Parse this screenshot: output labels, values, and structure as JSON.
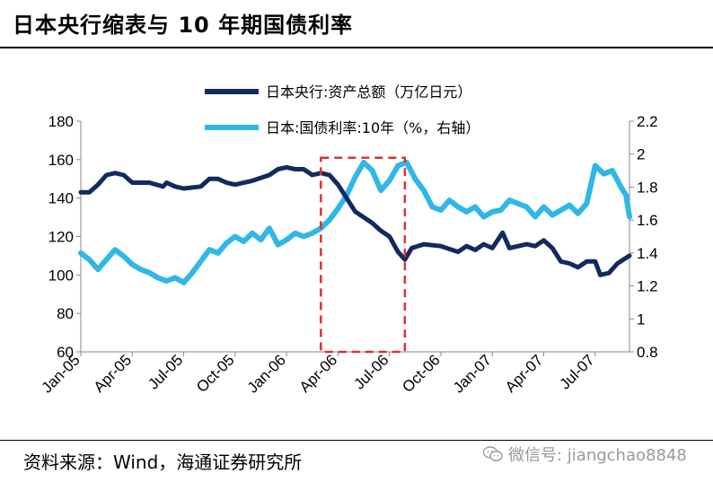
{
  "title": "日本央行缩表与 10 年期国债利率",
  "source": "资料来源：Wind，海通证券研究所",
  "watermark": {
    "icon": "wechat-icon",
    "text": "微信号: jiangchao8848"
  },
  "chart_data": {
    "type": "line",
    "colors": {
      "balance": "#132a5e",
      "yield": "#2fb7e6",
      "highlight": "#e03030"
    },
    "x_tick_labels": [
      "Jan-05",
      "Apr-05",
      "Jul-05",
      "Oct-05",
      "Jan-06",
      "Apr-06",
      "Jul-06",
      "Oct-06",
      "Jan-07",
      "Apr-07",
      "Jul-07"
    ],
    "x_range": [
      0,
      32
    ],
    "y_left": {
      "ticks": [
        60,
        80,
        100,
        120,
        140,
        160,
        180
      ],
      "range": [
        60,
        180
      ]
    },
    "y_right": {
      "ticks": [
        "0.8",
        "1",
        "1.2",
        "1.4",
        "1.6",
        "1.8",
        "2",
        "2.2"
      ],
      "range": [
        0.8,
        2.2
      ]
    },
    "highlight_box": {
      "x_range": [
        14,
        18.9
      ],
      "y_range": [
        60,
        161
      ]
    },
    "legend": [
      {
        "name": "日本央行:资产总额（万亿日元）",
        "axis": "left"
      },
      {
        "name": "日本:国债利率:10年（%，右轴）",
        "axis": "right"
      }
    ],
    "series": [
      {
        "name": "日本央行:资产总额（万亿日元）",
        "axis": "left",
        "points": [
          [
            0,
            143
          ],
          [
            0.5,
            143
          ],
          [
            1,
            147
          ],
          [
            1.5,
            152
          ],
          [
            2,
            153
          ],
          [
            2.5,
            152
          ],
          [
            3,
            148
          ],
          [
            4,
            148
          ],
          [
            4.8,
            146
          ],
          [
            5,
            148
          ],
          [
            5.5,
            146
          ],
          [
            6,
            145
          ],
          [
            7,
            146
          ],
          [
            7.5,
            150
          ],
          [
            8,
            150
          ],
          [
            8.5,
            148
          ],
          [
            9,
            147
          ],
          [
            10,
            149
          ],
          [
            11,
            152
          ],
          [
            11.5,
            155
          ],
          [
            12,
            156
          ],
          [
            12.5,
            155
          ],
          [
            13,
            155
          ],
          [
            13.5,
            152
          ],
          [
            14,
            153
          ],
          [
            14.5,
            152
          ],
          [
            15,
            147
          ],
          [
            15.5,
            140
          ],
          [
            16,
            133
          ],
          [
            17,
            127
          ],
          [
            17.5,
            123
          ],
          [
            18,
            120
          ],
          [
            18.5,
            112
          ],
          [
            18.9,
            108
          ],
          [
            19.3,
            114
          ],
          [
            20,
            116
          ],
          [
            21,
            115
          ],
          [
            22,
            112
          ],
          [
            22.5,
            115
          ],
          [
            23,
            113
          ],
          [
            23.5,
            116
          ],
          [
            24,
            114
          ],
          [
            24.6,
            122
          ],
          [
            25,
            114
          ],
          [
            26,
            116
          ],
          [
            26.5,
            115
          ],
          [
            27,
            118
          ],
          [
            27.5,
            114
          ],
          [
            28,
            107
          ],
          [
            28.5,
            106
          ],
          [
            29,
            104
          ],
          [
            29.5,
            107
          ],
          [
            30,
            107
          ],
          [
            30.3,
            100
          ],
          [
            30.8,
            101
          ],
          [
            31.3,
            106
          ],
          [
            32,
            110
          ]
        ]
      },
      {
        "name": "日本:国债利率:10年（%，右轴）",
        "axis": "right",
        "points": [
          [
            0,
            1.4
          ],
          [
            0.5,
            1.36
          ],
          [
            1,
            1.3
          ],
          [
            1.5,
            1.36
          ],
          [
            2,
            1.42
          ],
          [
            2.5,
            1.38
          ],
          [
            3,
            1.33
          ],
          [
            3.5,
            1.3
          ],
          [
            4,
            1.28
          ],
          [
            4.5,
            1.25
          ],
          [
            5,
            1.23
          ],
          [
            5.5,
            1.25
          ],
          [
            6,
            1.22
          ],
          [
            6.5,
            1.28
          ],
          [
            7,
            1.35
          ],
          [
            7.5,
            1.42
          ],
          [
            8,
            1.4
          ],
          [
            8.5,
            1.46
          ],
          [
            9,
            1.5
          ],
          [
            9.5,
            1.47
          ],
          [
            10,
            1.52
          ],
          [
            10.5,
            1.48
          ],
          [
            11,
            1.55
          ],
          [
            11.5,
            1.45
          ],
          [
            12,
            1.48
          ],
          [
            12.5,
            1.52
          ],
          [
            13,
            1.5
          ],
          [
            13.5,
            1.52
          ],
          [
            14,
            1.55
          ],
          [
            14.5,
            1.6
          ],
          [
            15,
            1.67
          ],
          [
            15.5,
            1.75
          ],
          [
            16,
            1.86
          ],
          [
            16.5,
            1.95
          ],
          [
            17,
            1.9
          ],
          [
            17.5,
            1.78
          ],
          [
            18,
            1.84
          ],
          [
            18.5,
            1.93
          ],
          [
            19,
            1.95
          ],
          [
            19.5,
            1.85
          ],
          [
            20,
            1.78
          ],
          [
            20.5,
            1.68
          ],
          [
            21,
            1.66
          ],
          [
            21.5,
            1.72
          ],
          [
            22,
            1.68
          ],
          [
            22.5,
            1.65
          ],
          [
            23,
            1.68
          ],
          [
            23.5,
            1.62
          ],
          [
            24,
            1.65
          ],
          [
            24.5,
            1.66
          ],
          [
            25,
            1.72
          ],
          [
            25.5,
            1.7
          ],
          [
            26,
            1.68
          ],
          [
            26.5,
            1.62
          ],
          [
            27,
            1.68
          ],
          [
            27.5,
            1.63
          ],
          [
            28,
            1.66
          ],
          [
            28.5,
            1.69
          ],
          [
            29,
            1.64
          ],
          [
            29.5,
            1.7
          ],
          [
            30,
            1.93
          ],
          [
            30.5,
            1.88
          ],
          [
            31,
            1.9
          ],
          [
            31.5,
            1.8
          ],
          [
            31.8,
            1.75
          ],
          [
            32,
            1.62
          ]
        ]
      }
    ]
  }
}
